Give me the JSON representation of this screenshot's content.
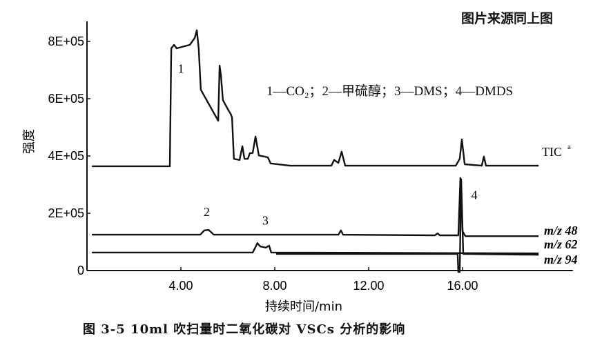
{
  "source_note": "图片来源同上图",
  "caption": "图 3-5   10ml 吹扫量时二氧化碳对 VSCs 分析的影响",
  "chart_data": {
    "type": "line",
    "title": "",
    "xlabel": "持续时间/min",
    "ylabel": "强度",
    "xlim": [
      0,
      20.7
    ],
    "ylim": [
      0,
      870000
    ],
    "xticks": [
      4,
      8,
      12,
      16
    ],
    "xtick_labels": [
      "4.00",
      "8.00",
      "12.00",
      "16.00"
    ],
    "yticks": [
      0,
      200000,
      400000,
      600000,
      800000
    ],
    "ytick_labels": [
      "0",
      "2E+05",
      "4E+05",
      "6E+05",
      "8E+05"
    ],
    "grid": false,
    "legend_text": "1—CO₂；2—甲硫醇；3—DMS；4—DMDS",
    "peak_labels": [
      {
        "text": "1",
        "x": 4.0,
        "y": 690000
      },
      {
        "text": "2",
        "x": 5.1,
        "y": 190000
      },
      {
        "text": "3",
        "x": 7.6,
        "y": 160000
      },
      {
        "text": "4",
        "x": 16.5,
        "y": 250000
      }
    ],
    "series": [
      {
        "name": "TIC",
        "superscript": "a",
        "x": [
          0.21,
          3.53,
          3.59,
          3.71,
          3.82,
          4.38,
          4.59,
          4.68,
          4.76,
          4.85,
          5.59,
          5.65,
          5.71,
          5.79,
          6.03,
          6.12,
          6.18,
          6.26,
          6.5,
          6.62,
          6.71,
          6.85,
          6.94,
          7.06,
          7.18,
          7.32,
          7.71,
          7.82,
          8.65,
          10.41,
          10.53,
          10.71,
          10.85,
          11.0,
          13.94,
          15.71,
          15.88,
          15.97,
          16.09,
          16.82,
          16.91,
          17.0,
          19.24
        ],
        "y": [
          364000,
          364000,
          776000,
          788000,
          776000,
          788000,
          812000,
          839000,
          776000,
          631000,
          523000,
          716000,
          680000,
          595000,
          559000,
          547000,
          535000,
          390000,
          386000,
          434000,
          390000,
          390000,
          410000,
          410000,
          468000,
          402000,
          395000,
          374000,
          366000,
          366000,
          386000,
          376000,
          415000,
          366000,
          366000,
          366000,
          390000,
          458000,
          371000,
          366000,
          398000,
          366000,
          366000
        ]
      },
      {
        "name": "m/z 48",
        "x": [
          0.21,
          4.82,
          5.0,
          5.18,
          5.41,
          10.71,
          10.82,
          10.91,
          14.82,
          14.94,
          15.03,
          15.82,
          15.91,
          16.0,
          16.12,
          19.24
        ],
        "y": [
          125000,
          125000,
          140000,
          142000,
          125000,
          125000,
          140000,
          125000,
          123000,
          130000,
          123000,
          123000,
          323000,
          137000,
          120000,
          120000
        ]
      },
      {
        "name": "m/z 62",
        "x": [
          0.21,
          7.06,
          7.18,
          7.26,
          7.38,
          7.62,
          7.76,
          7.85,
          19.24
        ],
        "y": [
          63000,
          63000,
          82000,
          96000,
          84000,
          80000,
          87000,
          63000,
          60000
        ]
      },
      {
        "name": "m/z 94",
        "x": [
          8.06,
          15.79,
          15.82,
          15.88,
          15.94,
          16.03,
          19.24
        ],
        "y": [
          58000,
          58000,
          -5000,
          -5000,
          318000,
          58000,
          55000
        ]
      }
    ]
  }
}
